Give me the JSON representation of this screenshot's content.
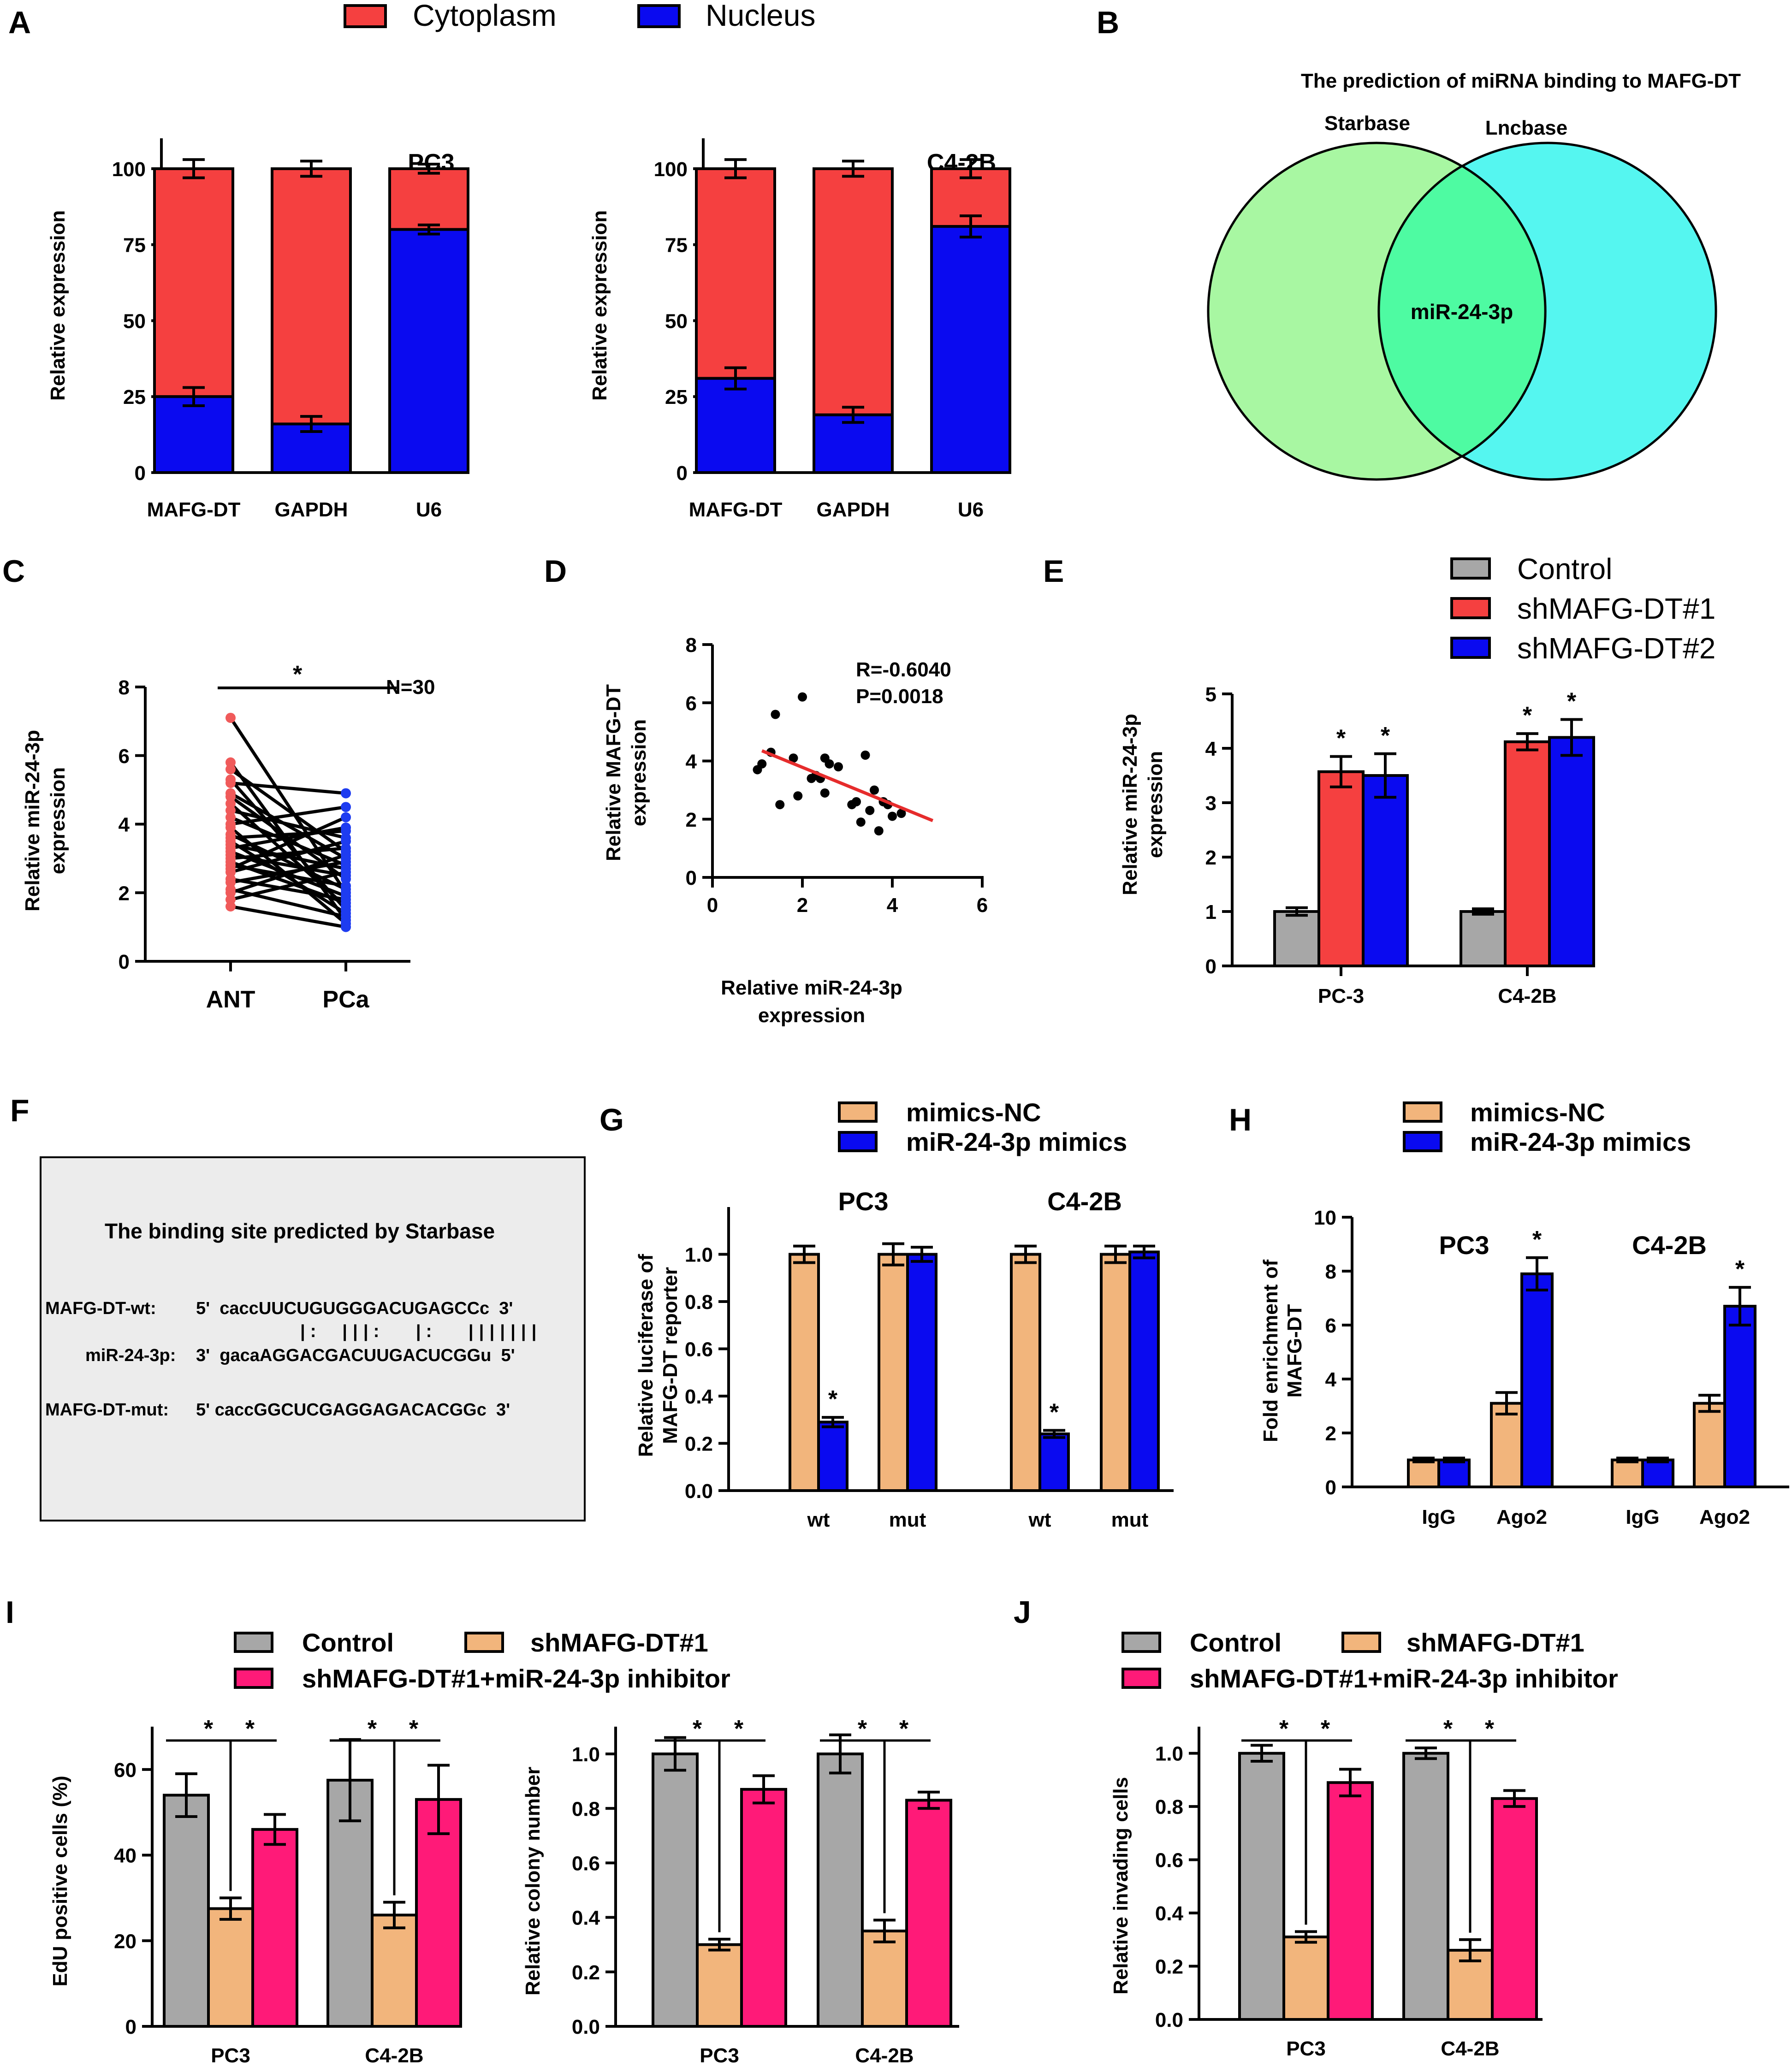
{
  "colors": {
    "cytoplasm": "#f54040",
    "nucleus": "#0a0af0",
    "control": "#a7a7a7",
    "shmafg1_red": "#f54040",
    "shmafg2_blue": "#0a0af0",
    "mimics_nc": "#f2b57c",
    "mimics": "#0a0af0",
    "inhibitor": "#ff1a78",
    "venn_starbase": "#a8f7a2",
    "venn_lncbase": "#55f6f0",
    "venn_overlap": "#4efba2",
    "ant_points": "#f05a5a",
    "pca_points": "#1e3cf0",
    "fit_line": "#e62c2c",
    "boxbg": "#ececec"
  },
  "panels": {
    "A": "A",
    "B": "B",
    "C": "C",
    "D": "D",
    "E": "E",
    "F": "F",
    "G": "G",
    "H": "H",
    "I": "I",
    "J": "J"
  },
  "panelA": {
    "legend": [
      "Cytoplasm",
      "Nucleus"
    ],
    "ylabel": "Relative expression",
    "yticks": [
      "0",
      "25",
      "50",
      "75",
      "100"
    ]
  },
  "panelB": {
    "title": "The prediction of miRNA binding to MAFG-DT",
    "left_label": "Starbase",
    "right_label": "Lncbase",
    "overlap_label": "miR-24-3p"
  },
  "panelC": {
    "ylabel1": "Relative miR-24-3p",
    "ylabel2": "expression",
    "sig": "*",
    "n_label": "N=30"
  },
  "panelD": {
    "ylabel1": "Relative MAFG-DT",
    "ylabel2": "expression",
    "xlabel1": "Relative miR-24-3p",
    "xlabel2": "expression",
    "r_label": "R=-0.6040",
    "p_label": "P=0.0018"
  },
  "panelE": {
    "legend": [
      "Control",
      "shMAFG-DT#1",
      "shMAFG-DT#2"
    ],
    "ylabel1": "Relative miR-24-3p",
    "ylabel2": "expression"
  },
  "panelF": {
    "title": "The binding site predicted by Starbase",
    "wt_label": "MAFG-DT-wt:",
    "wt_seq": "5'  caccUUCUGUGGGACUGAGCCc  3'",
    "pairs": "|:  |||:   |:   |||||||",
    "mir_label": "miR-24-3p:",
    "mir_seq": "3'  gacaAGGACGACUUGACUCGGu  5'",
    "mut_label": "MAFG-DT-mut:",
    "mut_seq": "5' caccGGCUCGAGGAGACACGGc  3'"
  },
  "panelG": {
    "legend": [
      "mimics-NC",
      "miR-24-3p mimics"
    ],
    "ylabel1": "Relative luciferase of",
    "ylabel2": "MAFG-DT reporter"
  },
  "panelH": {
    "legend": [
      "mimics-NC",
      "miR-24-3p mimics"
    ],
    "ylabel1": "Fold enrichment of",
    "ylabel2": "MAFG-DT"
  },
  "panelIJ": {
    "legend": [
      "Control",
      "shMAFG-DT#1",
      "shMAFG-DT#1+miR-24-3p inhibitor"
    ],
    "ylabel_edu": "EdU positive cells (%)",
    "ylabel_colony": "Relative colony number",
    "ylabel_invading": "Relative invading cells"
  },
  "chart_data": [
    {
      "id": "A1",
      "type": "bar",
      "stacked": true,
      "title": "PC3",
      "categories": [
        "MAFG-DT",
        "GAPDH",
        "U6"
      ],
      "series": [
        {
          "name": "Nucleus",
          "values": [
            25,
            16,
            80
          ],
          "err": [
            3,
            2.5,
            1.5
          ]
        },
        {
          "name": "Cytoplasm",
          "values": [
            75,
            84,
            20
          ],
          "err": [
            3,
            2.5,
            1.5
          ]
        }
      ],
      "ylabel": "Relative expression",
      "ylim": [
        0,
        100
      ],
      "yticks": [
        0,
        25,
        50,
        75,
        100
      ]
    },
    {
      "id": "A2",
      "type": "bar",
      "stacked": true,
      "title": "C4-2B",
      "categories": [
        "MAFG-DT",
        "GAPDH",
        "U6"
      ],
      "series": [
        {
          "name": "Nucleus",
          "values": [
            31,
            19,
            81
          ],
          "err": [
            3.5,
            2.5,
            3.5
          ]
        },
        {
          "name": "Cytoplasm",
          "values": [
            69,
            81,
            19
          ],
          "err": [
            3,
            2.5,
            3
          ]
        }
      ],
      "ylabel": "Relative expression",
      "ylim": [
        0,
        100
      ],
      "yticks": [
        0,
        25,
        50,
        75,
        100
      ]
    },
    {
      "id": "C",
      "type": "line",
      "title": "",
      "categories": [
        "ANT",
        "PCa"
      ],
      "ylabel": "Relative miR-24-3p expression",
      "ylim": [
        0,
        8
      ],
      "yticks": [
        0,
        2,
        4,
        6,
        8
      ],
      "ant": [
        7.1,
        5.8,
        5.6,
        5.3,
        5.2,
        4.9,
        4.8,
        4.6,
        4.4,
        4.2,
        4.0,
        3.9,
        3.7,
        3.6,
        3.5,
        3.4,
        3.3,
        3.2,
        3.1,
        3.0,
        2.9,
        2.8,
        2.7,
        2.6,
        2.4,
        2.3,
        2.1,
        2.0,
        1.8,
        1.6
      ],
      "pca": [
        2.0,
        1.2,
        3.2,
        1.5,
        4.9,
        3.0,
        2.4,
        1.6,
        3.6,
        2.8,
        4.5,
        1.1,
        2.1,
        3.8,
        1.4,
        2.7,
        3.9,
        1.9,
        2.5,
        3.3,
        1.7,
        2.2,
        4.2,
        3.5,
        1.8,
        2.9,
        1.3,
        3.1,
        2.6,
        1.0
      ]
    },
    {
      "id": "D",
      "type": "scatter",
      "xlabel": "Relative miR-24-3p expression",
      "ylabel": "Relative MAFG-DT expression",
      "xlim": [
        0,
        6
      ],
      "ylim": [
        0,
        8
      ],
      "xticks": [
        0,
        2,
        4,
        6
      ],
      "yticks": [
        0,
        2,
        4,
        6,
        8
      ],
      "x": [
        1.0,
        1.1,
        1.3,
        1.4,
        1.5,
        1.8,
        1.9,
        2.0,
        2.2,
        2.3,
        2.4,
        2.5,
        2.5,
        2.6,
        2.8,
        3.1,
        3.2,
        3.3,
        3.4,
        3.5,
        3.6,
        3.7,
        3.8,
        3.9,
        4.0,
        4.2
      ],
      "y": [
        3.7,
        3.9,
        4.3,
        5.6,
        2.5,
        4.1,
        2.8,
        6.2,
        3.4,
        3.5,
        3.4,
        2.9,
        4.1,
        3.9,
        3.8,
        2.5,
        2.6,
        1.9,
        4.2,
        2.3,
        3.0,
        1.6,
        2.6,
        2.5,
        2.1,
        2.2
      ],
      "fit": {
        "x": [
          1.1,
          4.9
        ],
        "y": [
          4.35,
          1.95
        ]
      },
      "annotations": [
        "R=-0.6040",
        "P=0.0018"
      ]
    },
    {
      "id": "E",
      "type": "bar",
      "categories": [
        "PC-3",
        "C4-2B"
      ],
      "series": [
        {
          "name": "Control",
          "values": [
            1.0,
            1.0
          ],
          "err": [
            0.07,
            0.05
          ]
        },
        {
          "name": "shMAFG-DT#1",
          "values": [
            3.57,
            4.12
          ],
          "err": [
            0.28,
            0.15
          ]
        },
        {
          "name": "shMAFG-DT#2",
          "values": [
            3.5,
            4.2
          ],
          "err": [
            0.4,
            0.33
          ]
        }
      ],
      "sig": [
        [
          false,
          true,
          true
        ],
        [
          false,
          true,
          true
        ]
      ],
      "ylabel": "Relative miR-24-3p expression",
      "ylim": [
        0,
        5
      ],
      "yticks": [
        0,
        1,
        2,
        3,
        4,
        5
      ]
    },
    {
      "id": "G",
      "type": "bar",
      "groups": [
        "PC3",
        "C4-2B"
      ],
      "categories": [
        "wt",
        "mut",
        "wt",
        "mut"
      ],
      "series": [
        {
          "name": "mimics-NC",
          "values": [
            1.0,
            1.0,
            1.0,
            1.0
          ],
          "err": [
            0.035,
            0.045,
            0.035,
            0.035
          ]
        },
        {
          "name": "miR-24-3p mimics",
          "values": [
            0.29,
            1.0,
            0.24,
            1.01
          ],
          "err": [
            0.02,
            0.03,
            0.015,
            0.025
          ]
        }
      ],
      "sig": [
        [
          false,
          true
        ],
        [
          false,
          false
        ],
        [
          false,
          true
        ],
        [
          false,
          false
        ]
      ],
      "ylabel": "Relative luciferase of MAFG-DT reporter",
      "ylim": [
        0,
        1.2
      ],
      "yticks": [
        "0.0",
        "0.2",
        "0.4",
        "0.6",
        "0.8",
        "1.0"
      ]
    },
    {
      "id": "H",
      "type": "bar",
      "groups": [
        "PC3",
        "C4-2B"
      ],
      "categories": [
        "IgG",
        "Ago2",
        "IgG",
        "Ago2"
      ],
      "series": [
        {
          "name": "mimics-NC",
          "values": [
            1.0,
            3.1,
            1.0,
            3.1
          ],
          "err": [
            0.07,
            0.4,
            0.07,
            0.3
          ]
        },
        {
          "name": "miR-24-3p mimics",
          "values": [
            1.0,
            7.9,
            1.0,
            6.7
          ],
          "err": [
            0.07,
            0.6,
            0.07,
            0.7
          ]
        }
      ],
      "sig": [
        [
          false,
          false
        ],
        [
          false,
          true
        ],
        [
          false,
          false
        ],
        [
          false,
          true
        ]
      ],
      "ylabel": "Fold enrichment of MAFG-DT",
      "ylim": [
        0,
        10
      ],
      "yticks": [
        0,
        2,
        4,
        6,
        8,
        10
      ]
    },
    {
      "id": "I1",
      "type": "bar",
      "categories": [
        "PC3",
        "C4-2B"
      ],
      "series": [
        {
          "name": "Control",
          "values": [
            54,
            57.5
          ],
          "err": [
            5,
            9.5
          ]
        },
        {
          "name": "shMAFG-DT#1",
          "values": [
            27.5,
            26
          ],
          "err": [
            2.5,
            3
          ]
        },
        {
          "name": "shMAFG-DT#1+miR-24-3p inhibitor",
          "values": [
            46,
            53
          ],
          "err": [
            3.5,
            8
          ]
        }
      ],
      "ylabel": "EdU positive cells (%)",
      "ylim": [
        0,
        70
      ],
      "yticks": [
        0,
        20,
        40,
        60
      ]
    },
    {
      "id": "I2",
      "type": "bar",
      "categories": [
        "PC3",
        "C4-2B"
      ],
      "series": [
        {
          "name": "Control",
          "values": [
            1.0,
            1.0
          ],
          "err": [
            0.06,
            0.07
          ]
        },
        {
          "name": "shMAFG-DT#1",
          "values": [
            0.3,
            0.35
          ],
          "err": [
            0.02,
            0.04
          ]
        },
        {
          "name": "shMAFG-DT#1+miR-24-3p inhibitor",
          "values": [
            0.87,
            0.83
          ],
          "err": [
            0.05,
            0.03
          ]
        }
      ],
      "ylabel": "Relative colony number",
      "ylim": [
        0,
        1.1
      ],
      "yticks": [
        "0.0",
        "0.2",
        "0.4",
        "0.6",
        "0.8",
        "1.0"
      ]
    },
    {
      "id": "J",
      "type": "bar",
      "categories": [
        "PC3",
        "C4-2B"
      ],
      "series": [
        {
          "name": "Control",
          "values": [
            1.0,
            1.0
          ],
          "err": [
            0.03,
            0.02
          ]
        },
        {
          "name": "shMAFG-DT#1",
          "values": [
            0.31,
            0.26
          ],
          "err": [
            0.02,
            0.04
          ]
        },
        {
          "name": "shMAFG-DT#1+miR-24-3p inhibitor",
          "values": [
            0.89,
            0.83
          ],
          "err": [
            0.05,
            0.03
          ]
        }
      ],
      "ylabel": "Relative invading cells",
      "ylim": [
        0,
        1.1
      ],
      "yticks": [
        "0.0",
        "0.2",
        "0.4",
        "0.6",
        "0.8",
        "1.0"
      ]
    }
  ]
}
